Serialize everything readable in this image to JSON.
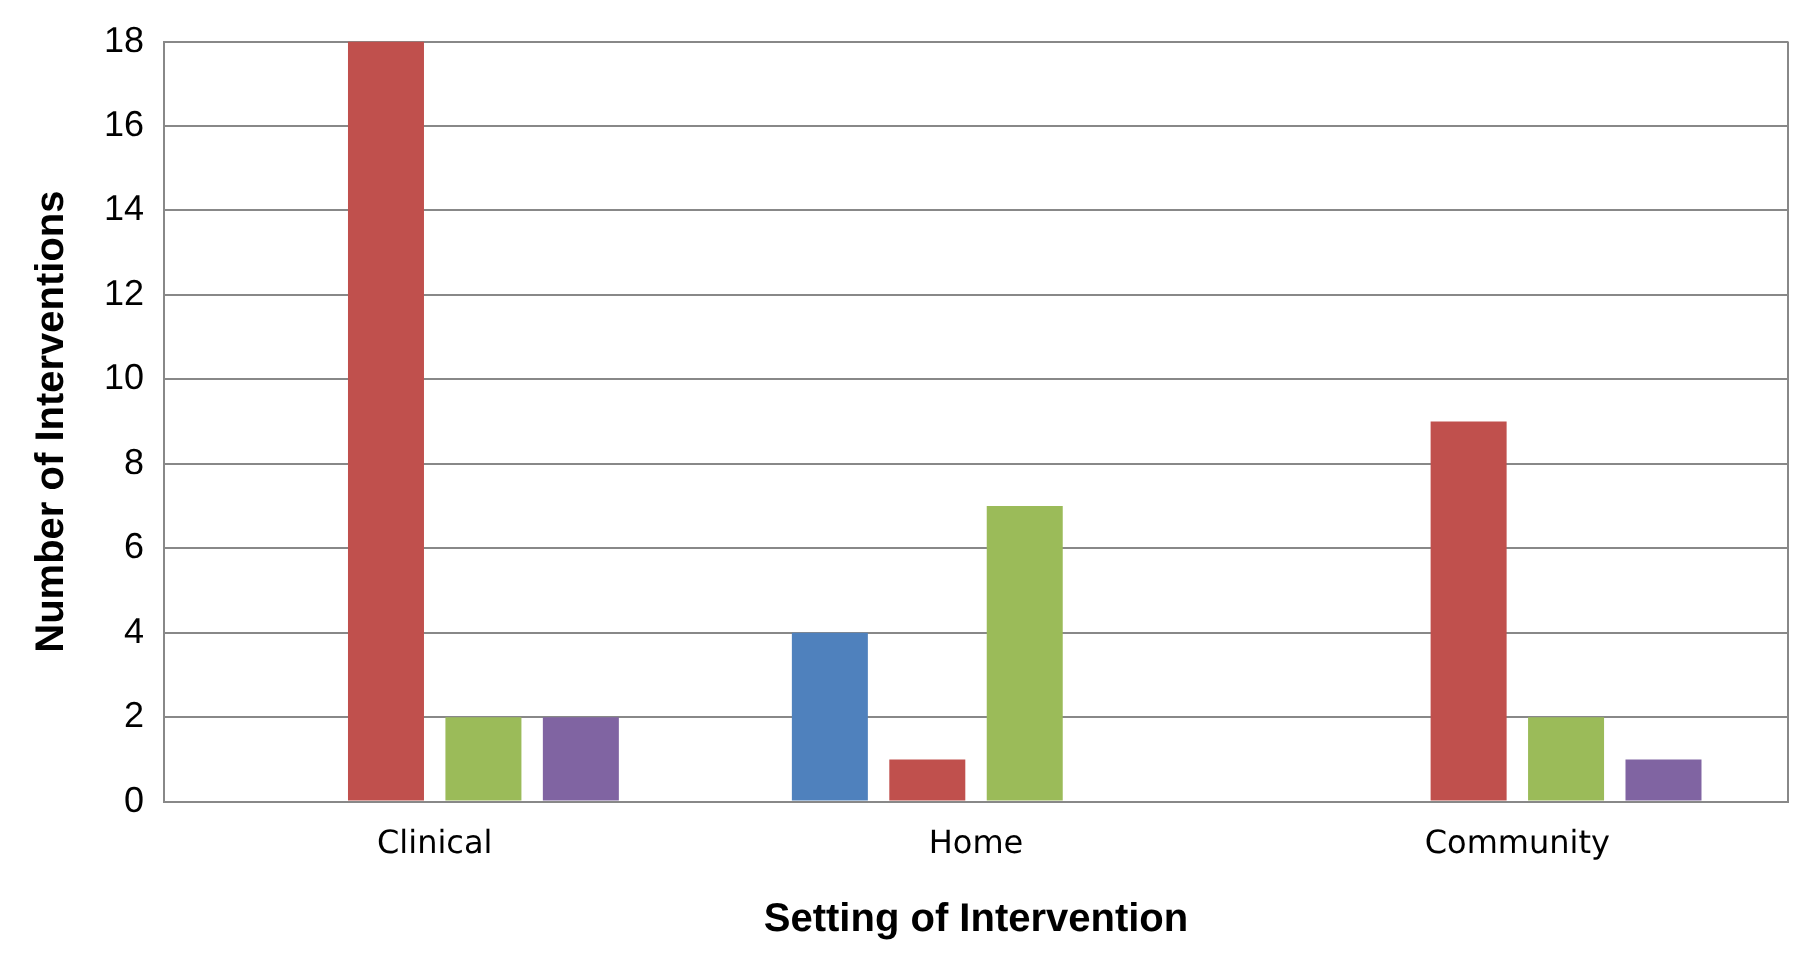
{
  "chart_data": {
    "type": "bar",
    "xlabel": "Setting of Intervention",
    "ylabel": "Number of Interventions",
    "categories": [
      "Clinical",
      "Home",
      "Community"
    ],
    "series": [
      {
        "color": "#4f81bd",
        "values": [
          0,
          4,
          0
        ]
      },
      {
        "color": "#c0504d",
        "values": [
          18,
          1,
          9
        ]
      },
      {
        "color": "#9bbb59",
        "values": [
          2,
          7,
          2
        ]
      },
      {
        "color": "#8064a2",
        "values": [
          2,
          0,
          1
        ]
      }
    ],
    "ylim": [
      0,
      18
    ],
    "yticks": [
      0,
      2,
      4,
      6,
      8,
      10,
      12,
      14,
      16,
      18
    ],
    "grid": "y",
    "legend": false
  }
}
